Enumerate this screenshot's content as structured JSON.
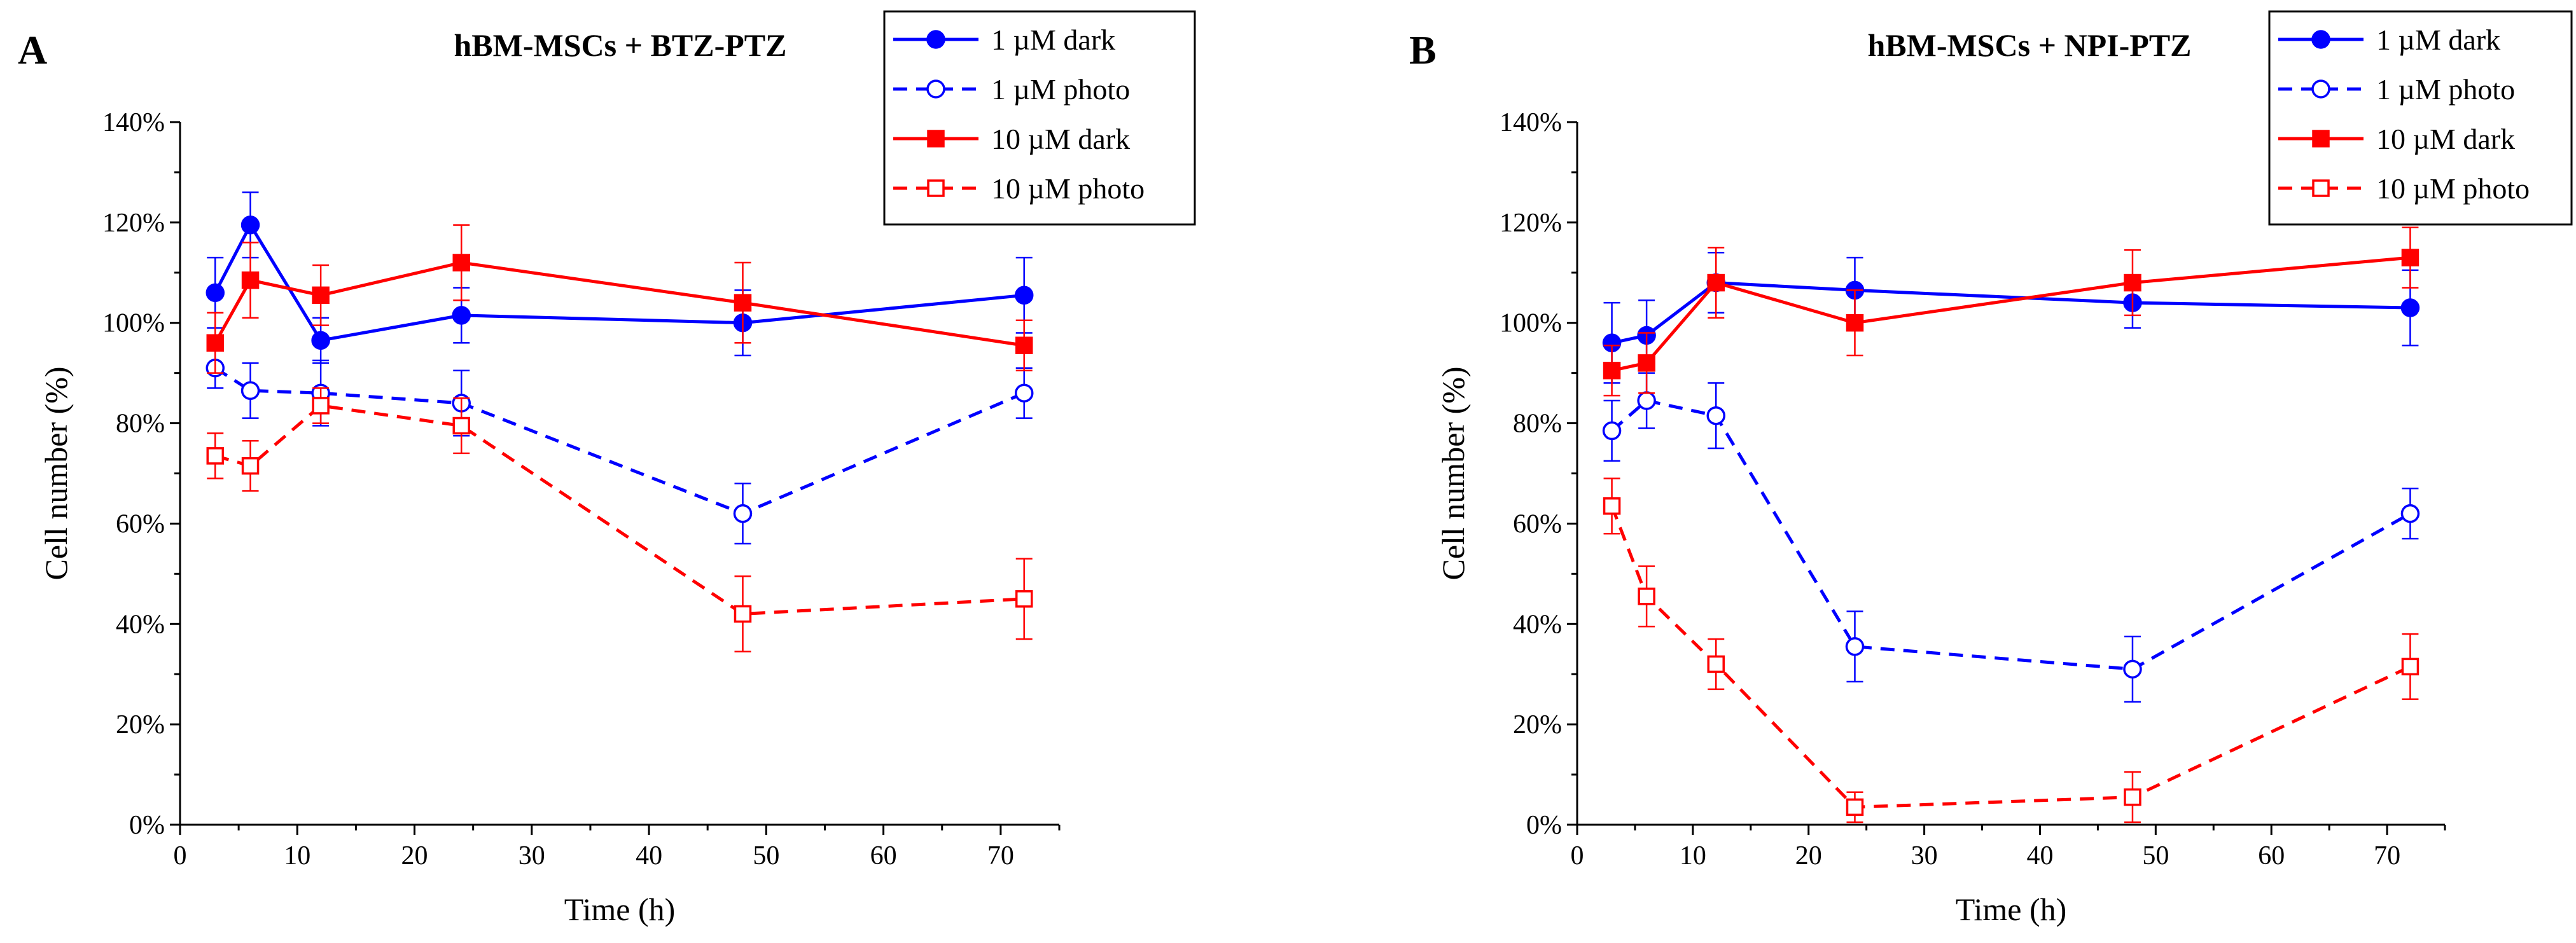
{
  "chart_data": [
    {
      "type": "line",
      "panel": "A",
      "title": "hBM-MSCs + BTZ-PTZ",
      "xlabel": "Time (h)",
      "ylabel": "Cell number (%)",
      "xlim": [
        0,
        75
      ],
      "ylim": [
        0,
        140
      ],
      "x_ticks": [
        0,
        10,
        20,
        30,
        40,
        50,
        60,
        70
      ],
      "y_ticks": [
        "0%",
        "20%",
        "40%",
        "60%",
        "80%",
        "100%",
        "120%",
        "140%"
      ],
      "y_tick_values": [
        0,
        20,
        40,
        60,
        80,
        100,
        120,
        140
      ],
      "grid": false,
      "legend_position": "top-right",
      "x": [
        3,
        6,
        12,
        24,
        48,
        72
      ],
      "series": [
        {
          "name": "1 µM dark",
          "color": "#0000ff",
          "dashed": false,
          "marker": "circle",
          "filled": true,
          "values": [
            106,
            119.5,
            96.5,
            101.5,
            100,
            105.5
          ],
          "errors": [
            7,
            6.5,
            4.5,
            5.5,
            6.5,
            7.5
          ]
        },
        {
          "name": "1 µM photo",
          "color": "#0000ff",
          "dashed": true,
          "marker": "circle",
          "filled": false,
          "values": [
            91,
            86.5,
            86,
            84,
            62,
            86
          ],
          "errors": [
            4,
            5.5,
            6.5,
            6.5,
            6,
            5
          ]
        },
        {
          "name": "10 µM dark",
          "color": "#ff0000",
          "dashed": false,
          "marker": "square",
          "filled": true,
          "values": [
            96,
            108.5,
            105.5,
            112,
            104,
            95.5
          ],
          "errors": [
            6,
            7.5,
            6,
            7.5,
            8,
            5
          ]
        },
        {
          "name": "10 µM photo",
          "color": "#ff0000",
          "dashed": true,
          "marker": "square",
          "filled": false,
          "values": [
            73.5,
            71.5,
            83.5,
            79.5,
            42,
            45
          ],
          "errors": [
            4.5,
            5,
            3.5,
            5.5,
            7.5,
            8
          ]
        }
      ]
    },
    {
      "type": "line",
      "panel": "B",
      "title": "hBM-MSCs + NPI-PTZ",
      "xlabel": "Time (h)",
      "ylabel": "Cell number (%)",
      "xlim": [
        0,
        75
      ],
      "ylim": [
        0,
        140
      ],
      "x_ticks": [
        0,
        10,
        20,
        30,
        40,
        50,
        60,
        70
      ],
      "y_ticks": [
        "0%",
        "20%",
        "40%",
        "60%",
        "80%",
        "100%",
        "120%",
        "140%"
      ],
      "y_tick_values": [
        0,
        20,
        40,
        60,
        80,
        100,
        120,
        140
      ],
      "grid": false,
      "legend_position": "top-right",
      "x": [
        3,
        6,
        12,
        24,
        48,
        72
      ],
      "series": [
        {
          "name": "1 µM dark",
          "color": "#0000ff",
          "dashed": false,
          "marker": "circle",
          "filled": true,
          "values": [
            96,
            97.5,
            108,
            106.5,
            104,
            103
          ],
          "errors": [
            8,
            7,
            6,
            6.5,
            5,
            7.5
          ]
        },
        {
          "name": "1 µM photo",
          "color": "#0000ff",
          "dashed": true,
          "marker": "circle",
          "filled": false,
          "values": [
            78.5,
            84.5,
            81.5,
            35.5,
            31,
            62
          ],
          "errors": [
            6,
            5.5,
            6.5,
            7,
            6.5,
            5
          ]
        },
        {
          "name": "10 µM dark",
          "color": "#ff0000",
          "dashed": false,
          "marker": "square",
          "filled": true,
          "values": [
            90.5,
            92,
            108,
            100,
            108,
            113
          ],
          "errors": [
            5,
            6,
            7,
            6.5,
            6.5,
            6
          ]
        },
        {
          "name": "10 µM photo",
          "color": "#ff0000",
          "dashed": true,
          "marker": "square",
          "filled": false,
          "values": [
            63.5,
            45.5,
            32,
            3.5,
            5.5,
            31.5
          ],
          "errors": [
            5.5,
            6,
            5,
            3,
            5,
            6.5
          ]
        }
      ]
    }
  ]
}
